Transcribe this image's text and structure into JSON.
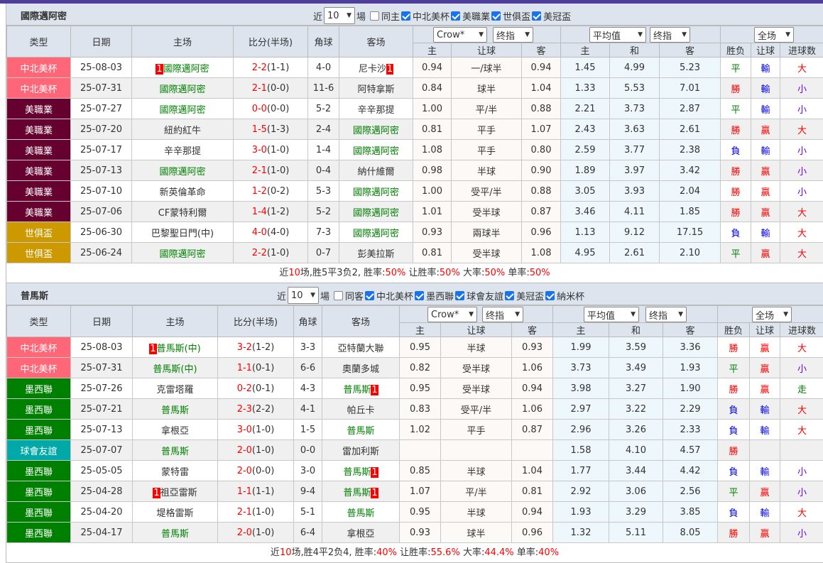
{
  "colors": {
    "accent_bar": "#4f3f9c",
    "header_bg": "#dde4ee",
    "win": "#ff0000",
    "lose": "#0000ff",
    "draw": "#008000"
  },
  "type_colors": {
    "中北美杯": "#ff6678",
    "美職業": "#66002f",
    "世俱盃": "#cc9900",
    "墨西聯": "#008000",
    "球會友誼": "#00a8a8"
  },
  "sections": [
    {
      "team": "國際邁阿密",
      "filter": {
        "prefix": "近",
        "count": "10",
        "suffix": "場",
        "same_label": "同主",
        "same_checked": false,
        "competitions": [
          "中北美杯",
          "美職業",
          "世俱盃",
          "美冠盃"
        ]
      },
      "headers": {
        "type": "类型",
        "date": "日期",
        "home": "主场",
        "score": "比分(半场)",
        "corner": "角球",
        "away": "客场",
        "company_select": "Crow*",
        "odds_select": "终指",
        "avg_select": "平均值",
        "avg_odds_select": "终指",
        "period_select": "全场",
        "sub": [
          "主",
          "让球",
          "客",
          "主",
          "和",
          "客",
          "胜负",
          "让球",
          "进球数"
        ]
      },
      "rows": [
        {
          "type": "中北美杯",
          "date": "25-08-03",
          "home": {
            "name": "國際邁阿密",
            "hl": true,
            "badge_before": "1"
          },
          "score": "2-2",
          "ht": "(1-1)",
          "corner": "4-0",
          "away": {
            "name": "尼卡沙",
            "badge_after": "1"
          },
          "ah": [
            "0.94",
            "一/球半",
            "0.94"
          ],
          "eu": [
            "1.45",
            "4.99",
            "5.23"
          ],
          "res": [
            "平",
            "輸",
            "大"
          ]
        },
        {
          "type": "中北美杯",
          "date": "25-07-31",
          "home": {
            "name": "國際邁阿密",
            "hl": true
          },
          "score": "2-1",
          "ht": "(0-0)",
          "corner": "11-6",
          "away": {
            "name": "阿特拿斯"
          },
          "ah": [
            "0.84",
            "球半",
            "1.04"
          ],
          "eu": [
            "1.33",
            "5.53",
            "7.01"
          ],
          "res": [
            "勝",
            "輸",
            "小"
          ]
        },
        {
          "type": "美職業",
          "date": "25-07-27",
          "home": {
            "name": "國際邁阿密",
            "hl": true
          },
          "score": "0-0",
          "ht": "(0-0)",
          "corner": "5-2",
          "away": {
            "name": "辛辛那提"
          },
          "ah": [
            "1.00",
            "平/半",
            "0.88"
          ],
          "eu": [
            "2.21",
            "3.73",
            "2.87"
          ],
          "res": [
            "平",
            "輸",
            "小"
          ]
        },
        {
          "type": "美職業",
          "date": "25-07-20",
          "home": {
            "name": "紐約紅牛"
          },
          "score": "1-5",
          "ht": "(1-3)",
          "corner": "2-4",
          "away": {
            "name": "國際邁阿密",
            "hl": true
          },
          "ah": [
            "0.81",
            "平手",
            "1.07"
          ],
          "eu": [
            "2.43",
            "3.63",
            "2.61"
          ],
          "res": [
            "勝",
            "贏",
            "大"
          ]
        },
        {
          "type": "美職業",
          "date": "25-07-17",
          "home": {
            "name": "辛辛那提"
          },
          "score": "3-0",
          "ht": "(1-0)",
          "corner": "1-4",
          "away": {
            "name": "國際邁阿密",
            "hl": true
          },
          "ah": [
            "1.08",
            "平手",
            "0.80"
          ],
          "eu": [
            "2.59",
            "3.77",
            "2.38"
          ],
          "res": [
            "負",
            "輸",
            "小"
          ]
        },
        {
          "type": "美職業",
          "date": "25-07-13",
          "home": {
            "name": "國際邁阿密",
            "hl": true
          },
          "score": "2-1",
          "ht": "(1-0)",
          "corner": "0-4",
          "away": {
            "name": "納什維爾"
          },
          "ah": [
            "0.98",
            "半球",
            "0.90"
          ],
          "eu": [
            "1.89",
            "3.97",
            "3.42"
          ],
          "res": [
            "勝",
            "贏",
            "小"
          ]
        },
        {
          "type": "美職業",
          "date": "25-07-10",
          "home": {
            "name": "新英倫革命"
          },
          "score": "1-2",
          "ht": "(0-2)",
          "corner": "5-3",
          "away": {
            "name": "國際邁阿密",
            "hl": true
          },
          "ah": [
            "1.00",
            "受平/半",
            "0.88"
          ],
          "eu": [
            "3.05",
            "3.93",
            "2.04"
          ],
          "res": [
            "勝",
            "贏",
            "小"
          ]
        },
        {
          "type": "美職業",
          "date": "25-07-06",
          "home": {
            "name": "CF蒙特利爾"
          },
          "score": "1-4",
          "ht": "(1-2)",
          "corner": "5-2",
          "away": {
            "name": "國際邁阿密",
            "hl": true
          },
          "ah": [
            "1.01",
            "受半球",
            "0.87"
          ],
          "eu": [
            "3.46",
            "4.11",
            "1.85"
          ],
          "res": [
            "勝",
            "贏",
            "大"
          ]
        },
        {
          "type": "世俱盃",
          "date": "25-06-30",
          "home": {
            "name": "巴黎聖日門(中)"
          },
          "score": "4-0",
          "ht": "(4-0)",
          "corner": "7-3",
          "away": {
            "name": "國際邁阿密",
            "hl": true
          },
          "ah": [
            "0.93",
            "兩球半",
            "0.96"
          ],
          "eu": [
            "1.13",
            "9.12",
            "17.15"
          ],
          "res": [
            "負",
            "輸",
            "大"
          ]
        },
        {
          "type": "世俱盃",
          "date": "25-06-24",
          "home": {
            "name": "國際邁阿密",
            "hl": true
          },
          "score": "2-2",
          "ht": "(1-0)",
          "corner": "0-7",
          "away": {
            "name": "彭美拉斯"
          },
          "ah": [
            "0.81",
            "受半球",
            "1.08"
          ],
          "eu": [
            "4.95",
            "2.61",
            "2.10"
          ],
          "res": [
            "平",
            "贏",
            "大"
          ]
        }
      ],
      "summary": {
        "p1": "近",
        "n": "10",
        "p2": "场,胜5平3负2, 胜率:",
        "win": "50%",
        "p3": " 让胜率:",
        "ahwin": "50%",
        "p4": " 大率:",
        "big": "50%",
        "p5": " 单率:",
        "odd": "50%"
      }
    },
    {
      "team": "普馬斯",
      "filter": {
        "prefix": "近",
        "count": "10",
        "suffix": "場",
        "same_label": "同客",
        "same_checked": false,
        "competitions": [
          "中北美杯",
          "墨西聯",
          "球會友誼",
          "美冠盃",
          "納米杯"
        ]
      },
      "headers": {
        "type": "类型",
        "date": "日期",
        "home": "主场",
        "score": "比分(半场)",
        "corner": "角球",
        "away": "客场",
        "company_select": "Crow*",
        "odds_select": "终指",
        "avg_select": "平均值",
        "avg_odds_select": "终指",
        "period_select": "全场",
        "sub": [
          "主",
          "让球",
          "客",
          "主",
          "和",
          "客",
          "胜负",
          "让球",
          "进球数"
        ]
      },
      "rows": [
        {
          "type": "中北美杯",
          "date": "25-08-03",
          "home": {
            "name": "普馬斯(中)",
            "hl": true,
            "badge_before": "1"
          },
          "score": "3-2",
          "ht": "(1-2)",
          "corner": "3-3",
          "away": {
            "name": "亞特蘭大聯"
          },
          "ah": [
            "0.95",
            "半球",
            "0.93"
          ],
          "eu": [
            "1.99",
            "3.59",
            "3.36"
          ],
          "res": [
            "勝",
            "贏",
            "大"
          ]
        },
        {
          "type": "中北美杯",
          "date": "25-07-31",
          "home": {
            "name": "普馬斯(中)",
            "hl": true
          },
          "score": "1-1",
          "ht": "(0-1)",
          "corner": "6-6",
          "away": {
            "name": "奧蘭多城"
          },
          "ah": [
            "0.82",
            "受半球",
            "1.06"
          ],
          "eu": [
            "3.73",
            "3.49",
            "1.93"
          ],
          "res": [
            "平",
            "贏",
            "小"
          ]
        },
        {
          "type": "墨西聯",
          "date": "25-07-26",
          "home": {
            "name": "克雷塔羅"
          },
          "score": "0-2",
          "ht": "(0-1)",
          "corner": "4-3",
          "away": {
            "name": "普馬斯",
            "hl": true,
            "badge_after": "1"
          },
          "ah": [
            "0.95",
            "受半球",
            "0.94"
          ],
          "eu": [
            "3.98",
            "3.27",
            "1.90"
          ],
          "res": [
            "勝",
            "贏",
            "走"
          ]
        },
        {
          "type": "墨西聯",
          "date": "25-07-21",
          "home": {
            "name": "普馬斯",
            "hl": true
          },
          "score": "2-3",
          "ht": "(2-2)",
          "corner": "4-1",
          "away": {
            "name": "帕丘卡"
          },
          "ah": [
            "0.83",
            "受平/半",
            "1.06"
          ],
          "eu": [
            "2.97",
            "3.22",
            "2.29"
          ],
          "res": [
            "負",
            "輸",
            "大"
          ]
        },
        {
          "type": "墨西聯",
          "date": "25-07-13",
          "home": {
            "name": "拿根亞"
          },
          "score": "3-0",
          "ht": "(1-0)",
          "corner": "1-5",
          "away": {
            "name": "普馬斯",
            "hl": true
          },
          "ah": [
            "1.02",
            "平手",
            "0.87"
          ],
          "eu": [
            "2.96",
            "3.26",
            "2.33"
          ],
          "res": [
            "負",
            "輸",
            "大"
          ]
        },
        {
          "type": "球會友誼",
          "date": "25-07-07",
          "home": {
            "name": "普馬斯",
            "hl": true
          },
          "score": "2-0",
          "ht": "(1-0)",
          "corner": "0-0",
          "away": {
            "name": "雷加利斯"
          },
          "ah": [
            "",
            "",
            ""
          ],
          "eu": [
            "1.58",
            "4.10",
            "4.57"
          ],
          "res": [
            "勝",
            "",
            ""
          ]
        },
        {
          "type": "墨西聯",
          "date": "25-05-05",
          "home": {
            "name": "蒙特雷"
          },
          "score": "2-0",
          "ht": "(0-0)",
          "corner": "3-0",
          "away": {
            "name": "普馬斯",
            "hl": true,
            "badge_after": "1"
          },
          "ah": [
            "0.85",
            "半球",
            "1.04"
          ],
          "eu": [
            "1.77",
            "3.44",
            "4.42"
          ],
          "res": [
            "負",
            "輸",
            "小"
          ]
        },
        {
          "type": "墨西聯",
          "date": "25-04-28",
          "home": {
            "name": "祖亞雷斯",
            "badge_before": "1"
          },
          "score": "1-1",
          "ht": "(1-1)",
          "corner": "9-4",
          "away": {
            "name": "普馬斯",
            "hl": true,
            "badge_after": "1"
          },
          "ah": [
            "1.07",
            "平/半",
            "0.81"
          ],
          "eu": [
            "2.92",
            "3.06",
            "2.56"
          ],
          "res": [
            "平",
            "贏",
            "小"
          ]
        },
        {
          "type": "墨西聯",
          "date": "25-04-20",
          "home": {
            "name": "堤格雷斯"
          },
          "score": "2-1",
          "ht": "(1-0)",
          "corner": "5-1",
          "away": {
            "name": "普馬斯",
            "hl": true
          },
          "ah": [
            "0.95",
            "半球",
            "0.94"
          ],
          "eu": [
            "1.93",
            "3.29",
            "3.85"
          ],
          "res": [
            "負",
            "輸",
            "大"
          ]
        },
        {
          "type": "墨西聯",
          "date": "25-04-17",
          "home": {
            "name": "普馬斯",
            "hl": true
          },
          "score": "2-0",
          "ht": "(1-0)",
          "corner": "6-4",
          "away": {
            "name": "拿根亞"
          },
          "ah": [
            "0.93",
            "球半",
            "0.96"
          ],
          "eu": [
            "1.32",
            "5.11",
            "8.05"
          ],
          "res": [
            "勝",
            "贏",
            "小"
          ]
        }
      ],
      "summary": {
        "p1": "近",
        "n": "10",
        "p2": "场,胜4平2负4, 胜率:",
        "win": "40%",
        "p3": " 让胜率:",
        "ahwin": "55.6%",
        "p4": " 大率:",
        "big": "44.4%",
        "p5": " 单率:",
        "odd": "40%"
      }
    }
  ]
}
